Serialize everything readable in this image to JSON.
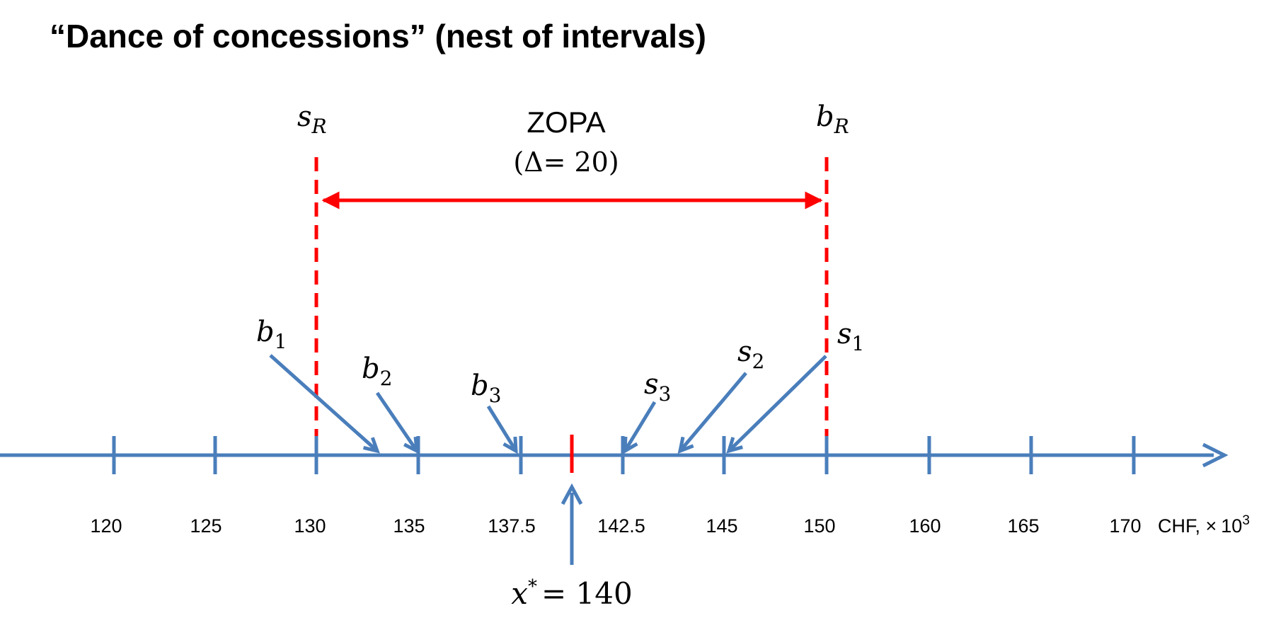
{
  "title": "“Dance of concessions” (nest of intervals)",
  "colors": {
    "axis": "#4A7EBB",
    "reservation": "#FF0000"
  },
  "zopa": {
    "label": "ZOPA",
    "delta": "(Δ= 20)"
  },
  "reservation": {
    "seller": {
      "sym": "s",
      "sub": "R",
      "value": 130
    },
    "buyer": {
      "sym": "b",
      "sub": "R",
      "value": 150
    }
  },
  "axis": {
    "ticks": [
      "120",
      "125",
      "130",
      "135",
      "137.5",
      "142.5",
      "145",
      "150",
      "160",
      "165",
      "170"
    ],
    "unit": "CHF, ×",
    "unit_base": "10",
    "unit_exp": "3"
  },
  "offers": [
    {
      "sym": "b",
      "sub": "1"
    },
    {
      "sym": "b",
      "sub": "2"
    },
    {
      "sym": "b",
      "sub": "3"
    },
    {
      "sym": "s",
      "sub": "3"
    },
    {
      "sym": "s",
      "sub": "2"
    },
    {
      "sym": "s",
      "sub": "1"
    }
  ],
  "solution": {
    "lhs": "x",
    "sup": "*",
    "rhs": "= 140",
    "value": 140
  }
}
